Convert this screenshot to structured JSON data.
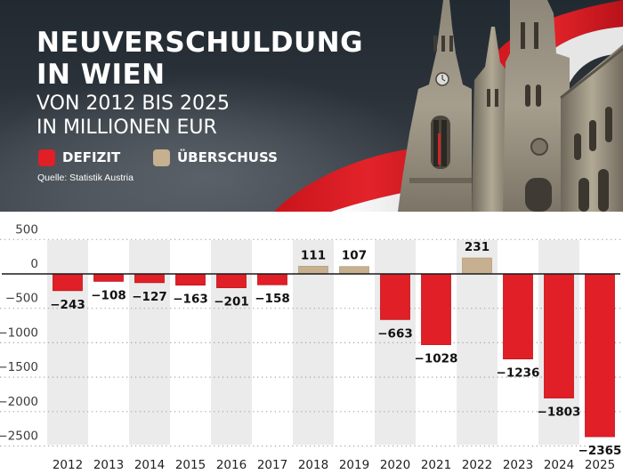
{
  "header": {
    "title_line1": "NEUVERSCHULDUNG",
    "title_line2": "IN WIEN",
    "subtitle_line1": "VON 2012 BIS 2025",
    "subtitle_line2": "IN MILLIONEN EUR",
    "source": "Quelle: Statistik Austria",
    "legend": [
      {
        "label": "DEFIZIT",
        "color": "#e01f26"
      },
      {
        "label": "ÜBERSCHUSS",
        "color": "#c6b08f"
      }
    ]
  },
  "colors": {
    "deficit": "#e01f26",
    "surplus": "#c6b08f",
    "shade": "#ebebeb",
    "header_bg": "#232a32"
  },
  "chart_data": {
    "type": "bar",
    "title": "NEUVERSCHULDUNG IN WIEN",
    "subtitle": "VON 2012 BIS 2025 IN MILLIONEN EUR",
    "xlabel": "",
    "ylabel": "",
    "categories": [
      "2012",
      "2013",
      "2014",
      "2015",
      "2016",
      "2017",
      "2018",
      "2019",
      "2020",
      "2021",
      "2022",
      "2023",
      "2024",
      "2025"
    ],
    "values": [
      -243,
      -108,
      -127,
      -163,
      -201,
      -158,
      111,
      107,
      -663,
      -1028,
      231,
      -1236,
      -1803,
      -2365
    ],
    "value_labels": [
      "−243",
      "−108",
      "−127",
      "−163",
      "−201",
      "−158",
      "111",
      "107",
      "−663",
      "−1028",
      "231",
      "−1236",
      "−1803",
      "−2365"
    ],
    "yticks": [
      500,
      0,
      -500,
      -1000,
      -1500,
      -2000,
      -2500
    ],
    "ytick_labels": [
      "500",
      "0",
      "−500",
      "−1000",
      "−1500",
      "−2000",
      "−2500"
    ],
    "ylim": [
      -2500,
      500
    ],
    "grid": true,
    "legend_position": "top-left",
    "series": [
      {
        "name": "DEFIZIT",
        "rule": "negative values"
      },
      {
        "name": "ÜBERSCHUSS",
        "rule": "positive values"
      }
    ]
  }
}
